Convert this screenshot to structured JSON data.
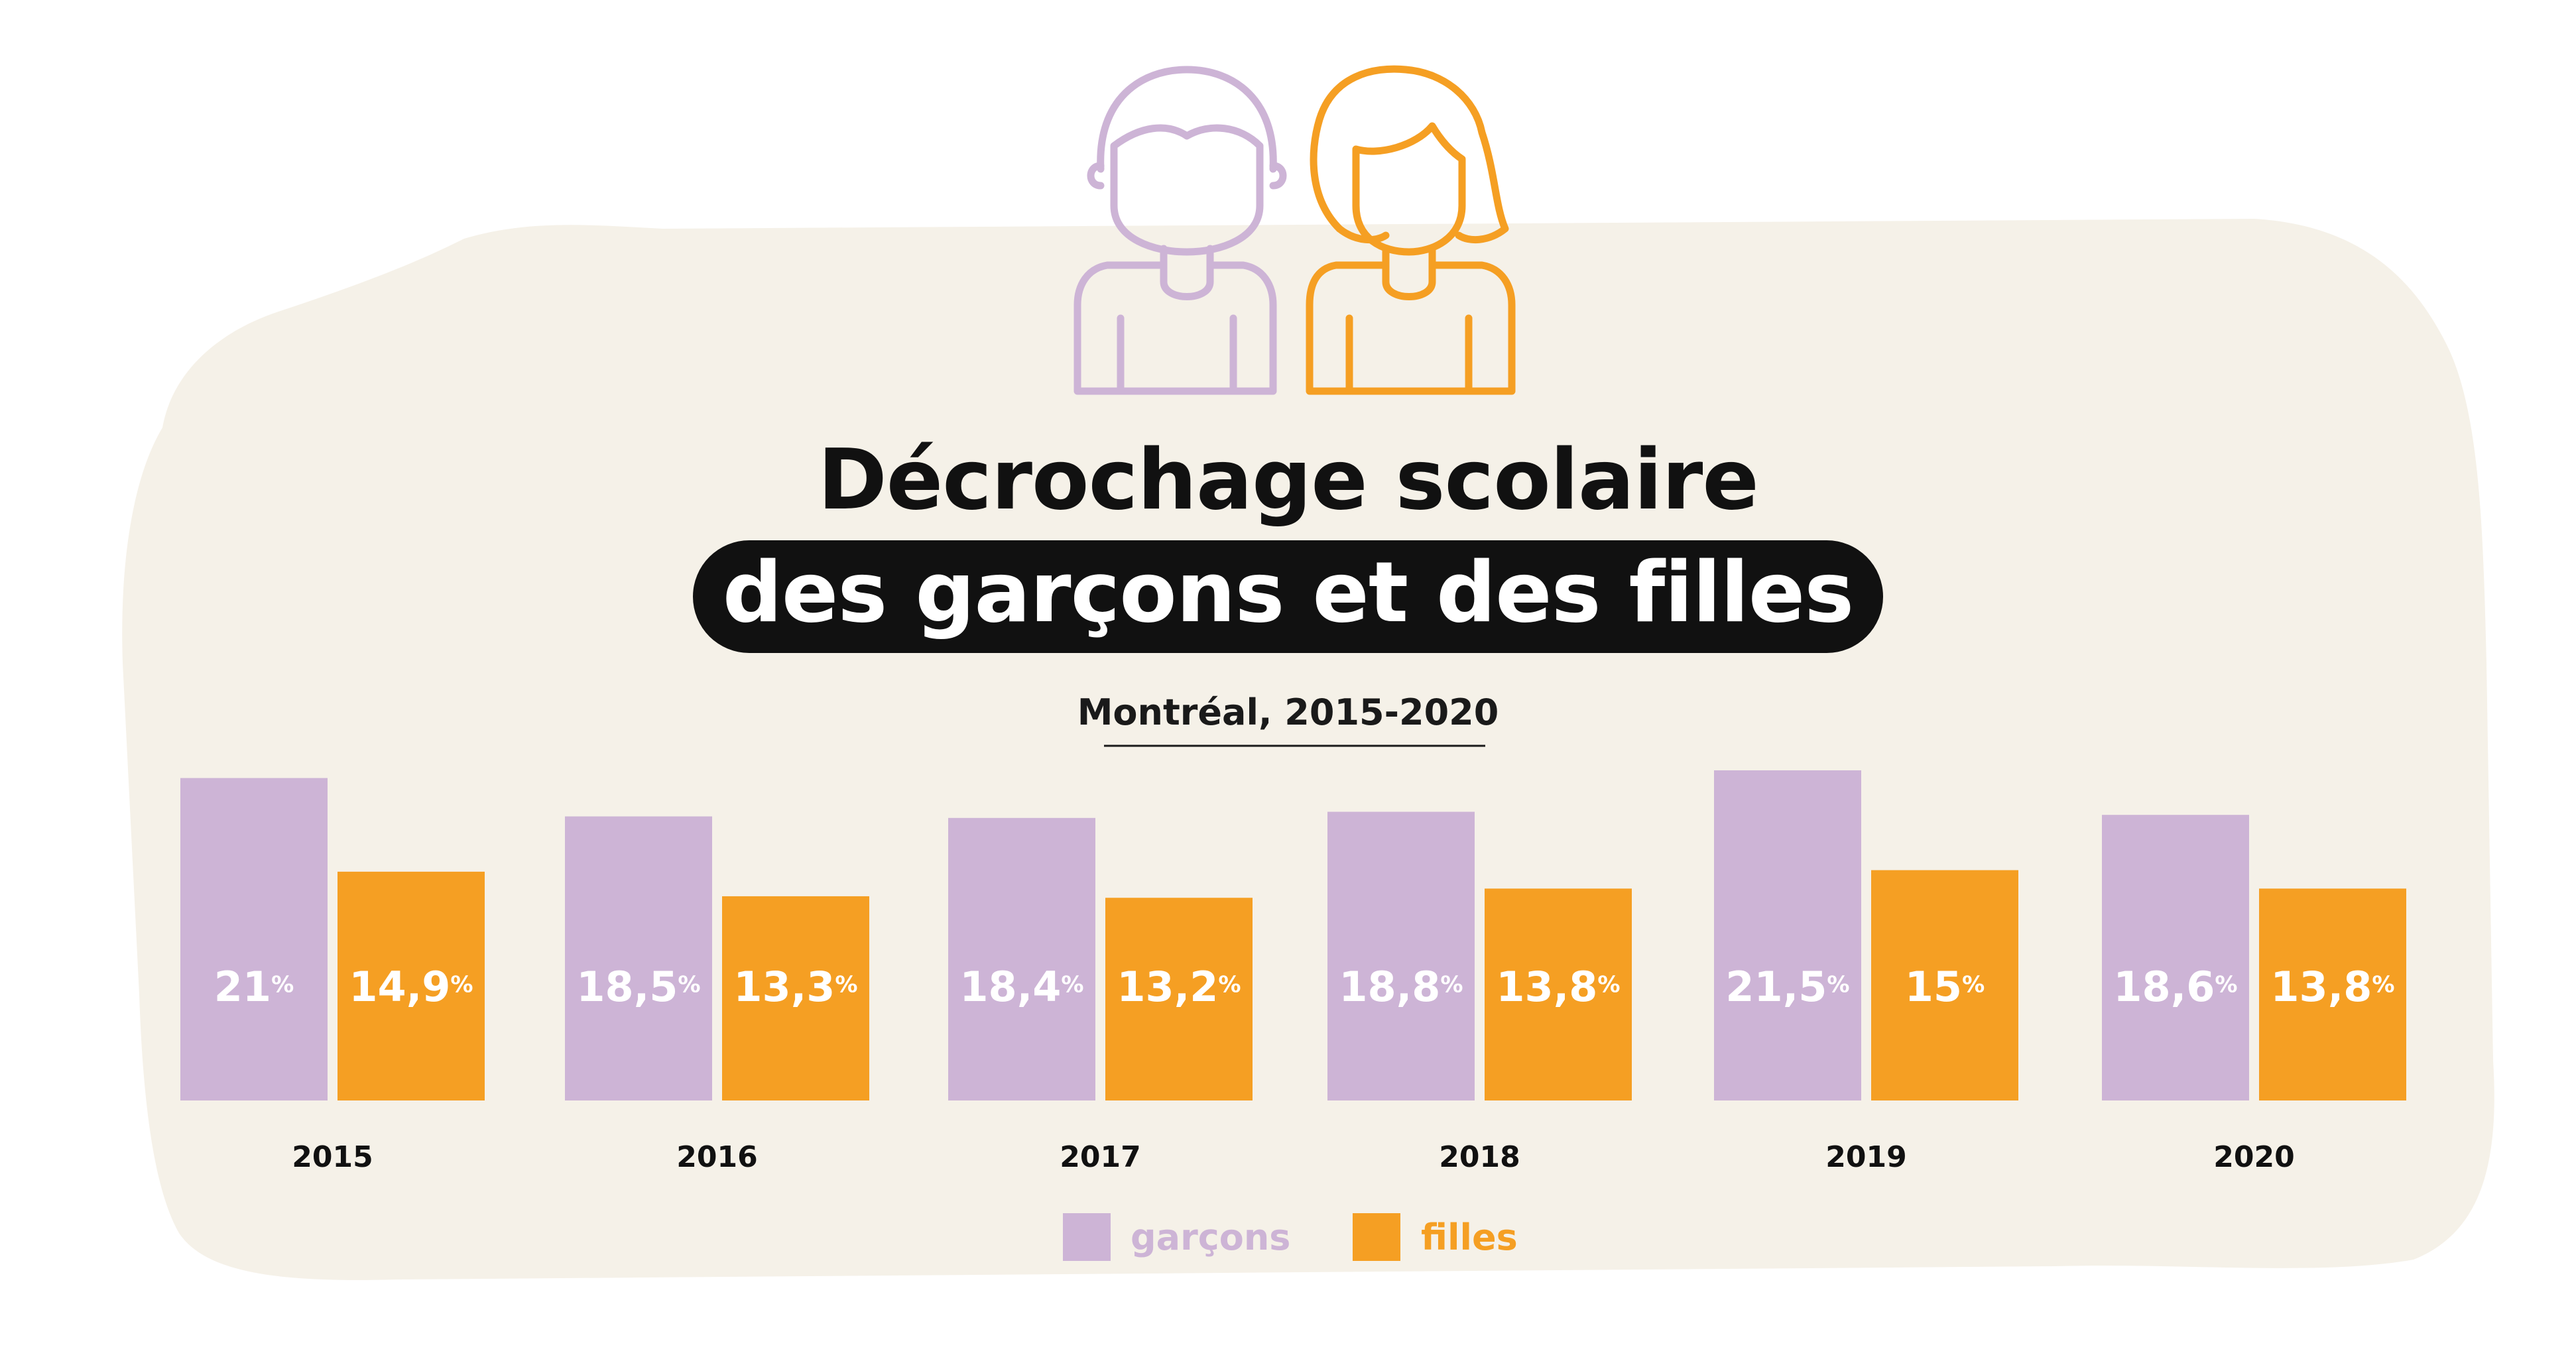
{
  "title": "Décrochage scolaire",
  "subtitle_highlight": "des garçons et des filles",
  "caption": "Montréal, 2015-2020",
  "legend": {
    "garcons": "garçons",
    "filles": "filles"
  },
  "colors": {
    "garcons": "#cdb4d6",
    "filles": "#f59f23",
    "background_blob": "#f5f1e8",
    "title": "#111111",
    "highlight_bg": "#111111"
  },
  "icons": {
    "boy": "boy-icon",
    "girl": "girl-icon"
  },
  "chart_data": {
    "type": "bar",
    "categories": [
      "2015",
      "2016",
      "2017",
      "2018",
      "2019",
      "2020"
    ],
    "series": [
      {
        "name": "garçons",
        "values": [
          21,
          18.5,
          18.4,
          18.8,
          21.5,
          18.6
        ],
        "labels": [
          "21",
          "18,5",
          "18,4",
          "18,8",
          "21,5",
          "18,6"
        ]
      },
      {
        "name": "filles",
        "values": [
          14.9,
          13.3,
          13.2,
          13.8,
          15,
          13.8
        ],
        "labels": [
          "14,9",
          "13,3",
          "13,2",
          "13,8",
          "15",
          "13,8"
        ]
      }
    ],
    "unit": "%",
    "ylim": [
      0,
      21.5
    ],
    "grid": false,
    "legend_position": "bottom"
  }
}
